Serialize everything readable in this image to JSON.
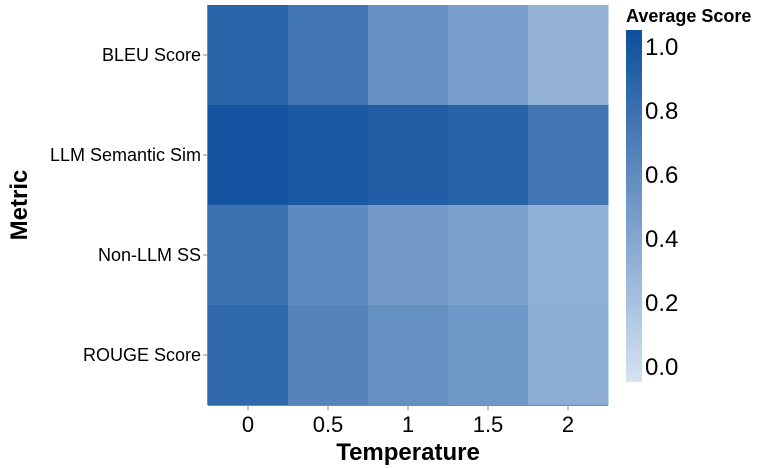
{
  "chart_data": {
    "type": "heatmap",
    "xlabel": "Temperature",
    "ylabel": "Metric",
    "x_categories": [
      "0",
      "0.5",
      "1",
      "1.5",
      "2"
    ],
    "y_categories": [
      "BLEU Score",
      "LLM Semantic Sim",
      "Non-LLM SS",
      "ROUGE Score"
    ],
    "values": [
      [
        0.86,
        0.73,
        0.55,
        0.46,
        0.33
      ],
      [
        0.97,
        0.93,
        0.9,
        0.87,
        0.74
      ],
      [
        0.76,
        0.6,
        0.49,
        0.45,
        0.35
      ],
      [
        0.83,
        0.64,
        0.56,
        0.51,
        0.36
      ]
    ],
    "legend": {
      "title": "Average Score",
      "ticks": [
        "0.0",
        "0.2",
        "0.4",
        "0.6",
        "0.8",
        "1.0"
      ],
      "range": [
        0,
        1
      ],
      "color_low": "#d6e2f3",
      "color_high": "#0d4f9c"
    },
    "grid": false
  }
}
